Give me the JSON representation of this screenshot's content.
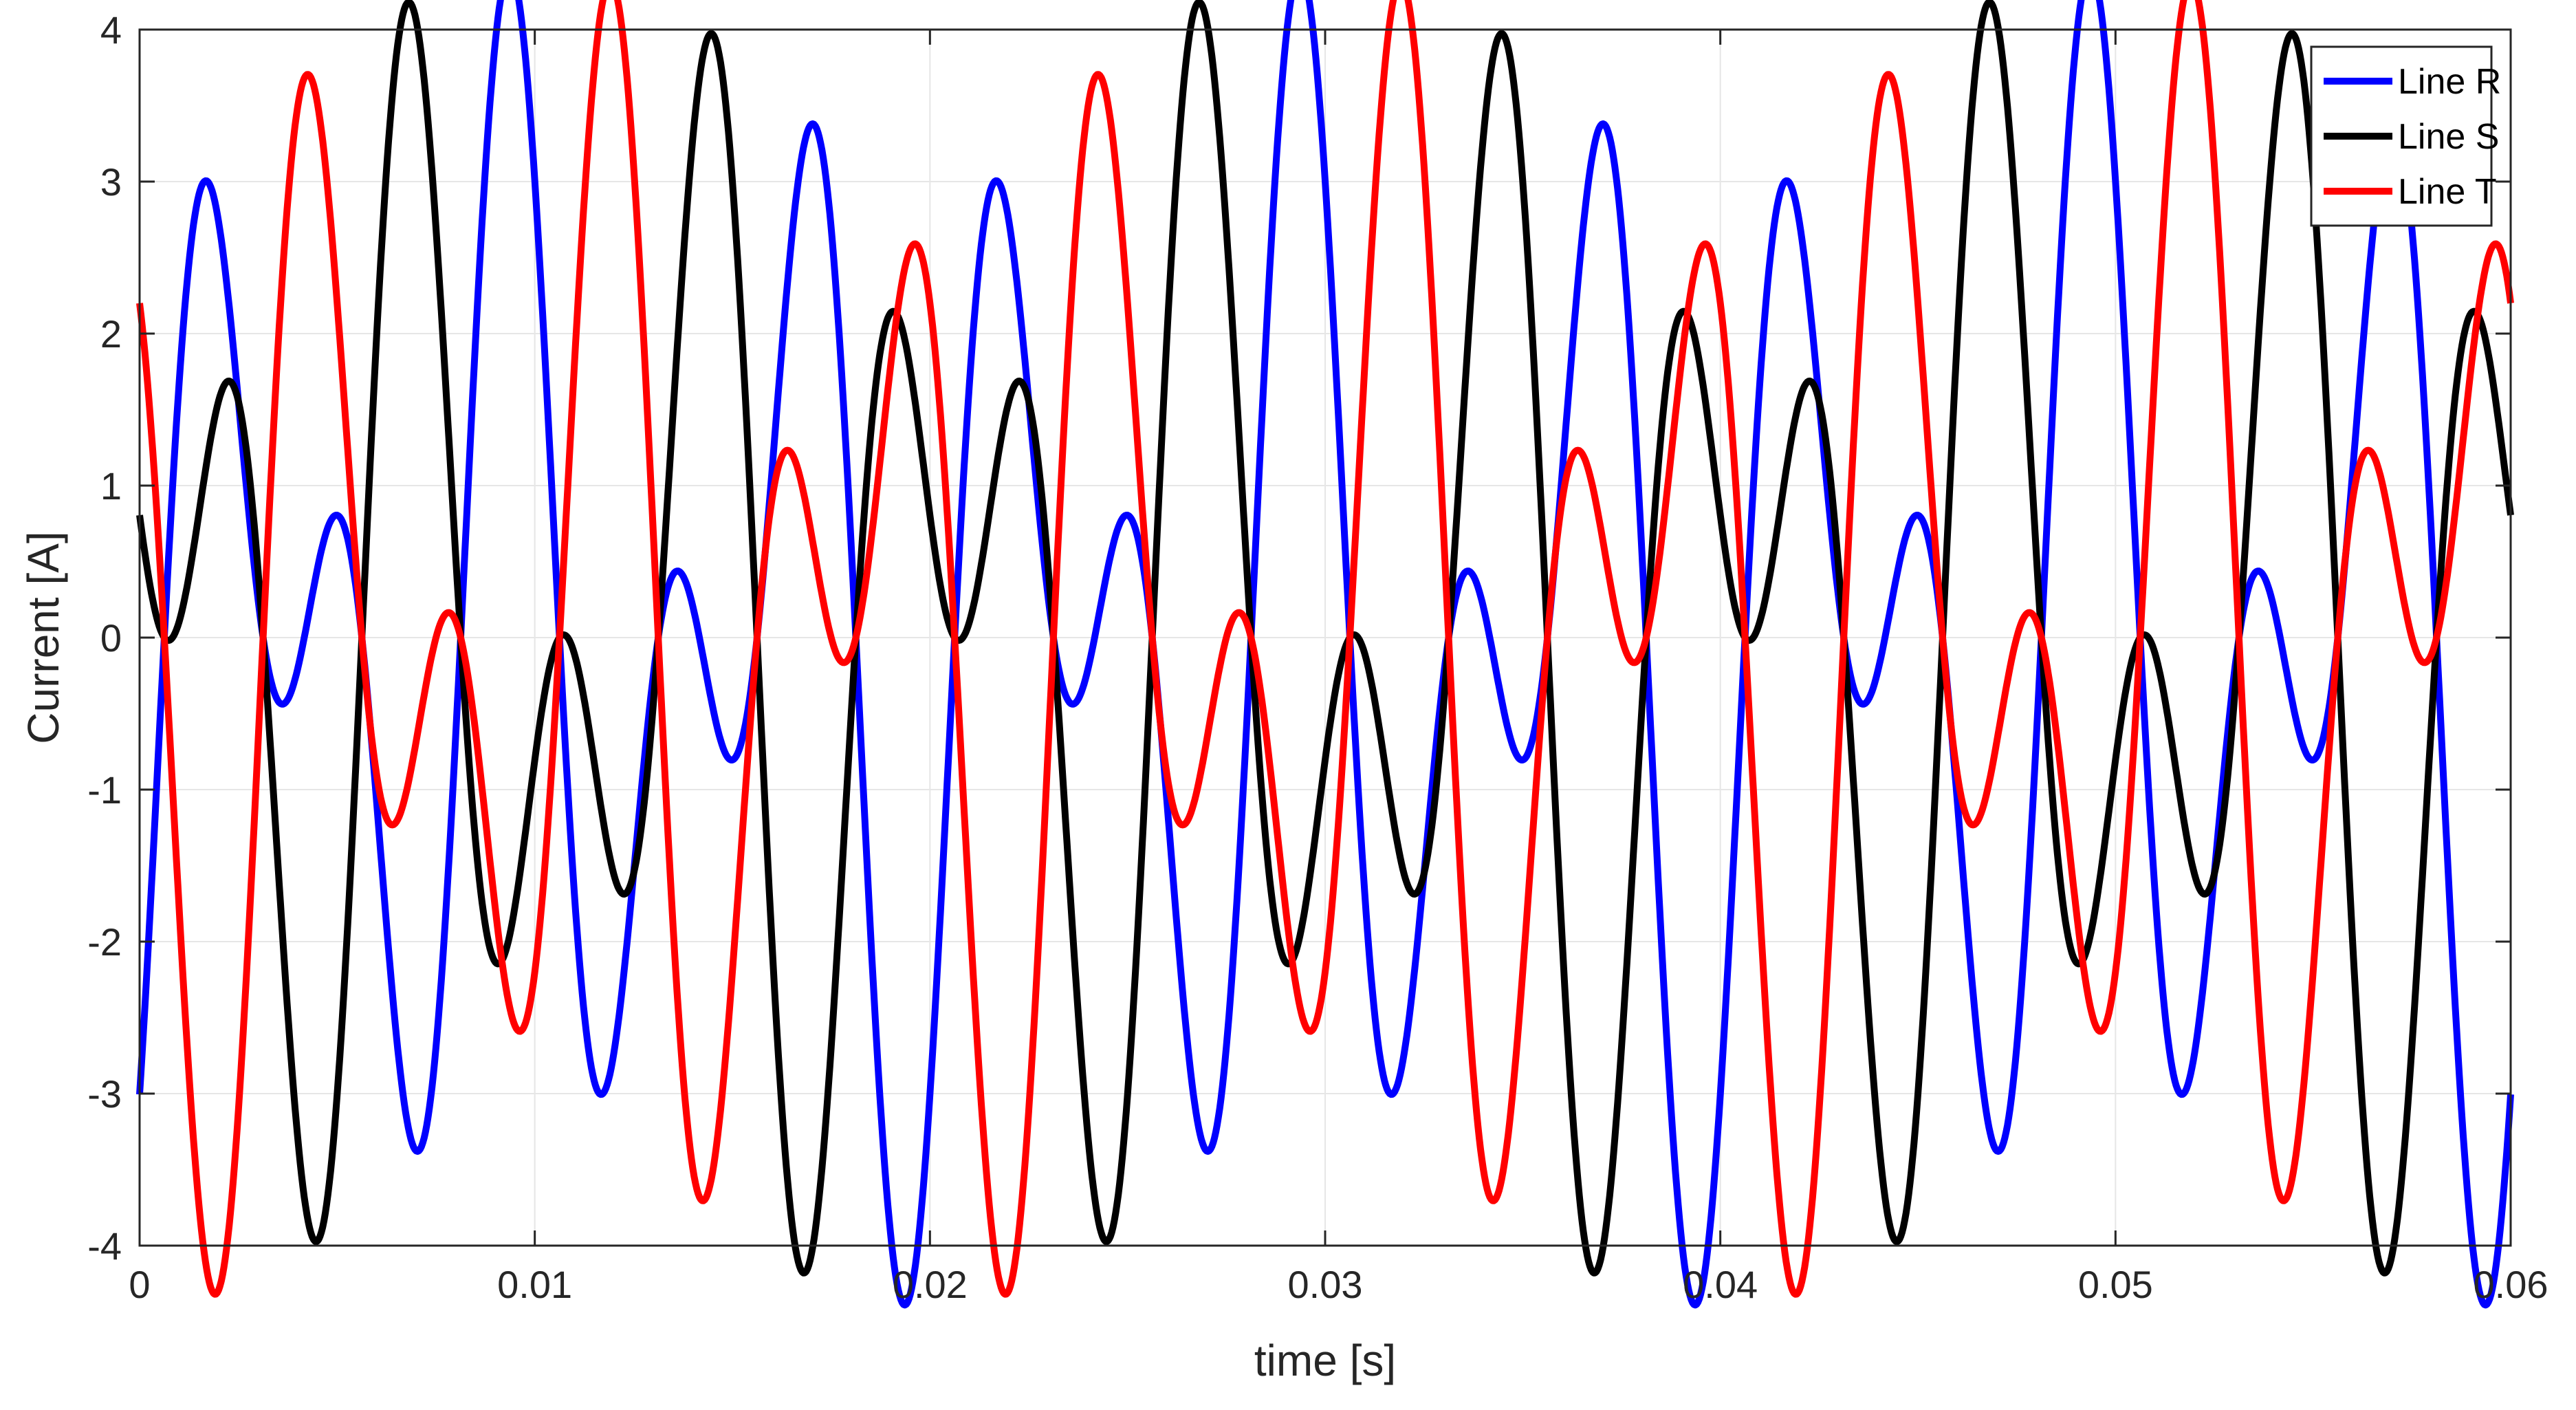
{
  "chart_data": {
    "type": "line",
    "title": "",
    "xlabel": "time [s]",
    "ylabel": "Current [A]",
    "xlim": [
      0,
      0.06
    ],
    "ylim": [
      -4,
      4
    ],
    "grid": true,
    "legend_position": "top-right",
    "x_ticks": [
      0,
      0.01,
      0.02,
      0.03,
      0.04,
      0.05,
      0.06
    ],
    "x_tick_labels": [
      "0",
      "0.01",
      "0.02",
      "0.03",
      "0.04",
      "0.05",
      "0.06"
    ],
    "y_ticks": [
      -4,
      -3,
      -2,
      -1,
      0,
      1,
      2,
      3,
      4
    ],
    "y_tick_labels": [
      "-4",
      "-3",
      "-2",
      "-1",
      "0",
      "1",
      "2",
      "3",
      "4"
    ],
    "series": [
      {
        "name": "Line R",
        "color": "#0000ff",
        "components": [
          {
            "frequency_hz": 150,
            "amplitude_a": 2.2,
            "phase_deg": -60
          },
          {
            "frequency_hz": 250,
            "amplitude_a": 2.2,
            "phase_deg": -30
          }
        ]
      },
      {
        "name": "Line S",
        "color": "#000000",
        "components": [
          {
            "frequency_hz": 150,
            "amplitude_a": 2.2,
            "phase_deg": 60
          },
          {
            "frequency_hz": 250,
            "amplitude_a": 2.2,
            "phase_deg": -150
          }
        ]
      },
      {
        "name": "Line T",
        "color": "#ff0000",
        "components": [
          {
            "frequency_hz": 150,
            "amplitude_a": 2.2,
            "phase_deg": 180
          },
          {
            "frequency_hz": 250,
            "amplitude_a": 2.2,
            "phase_deg": 90
          }
        ]
      }
    ]
  }
}
